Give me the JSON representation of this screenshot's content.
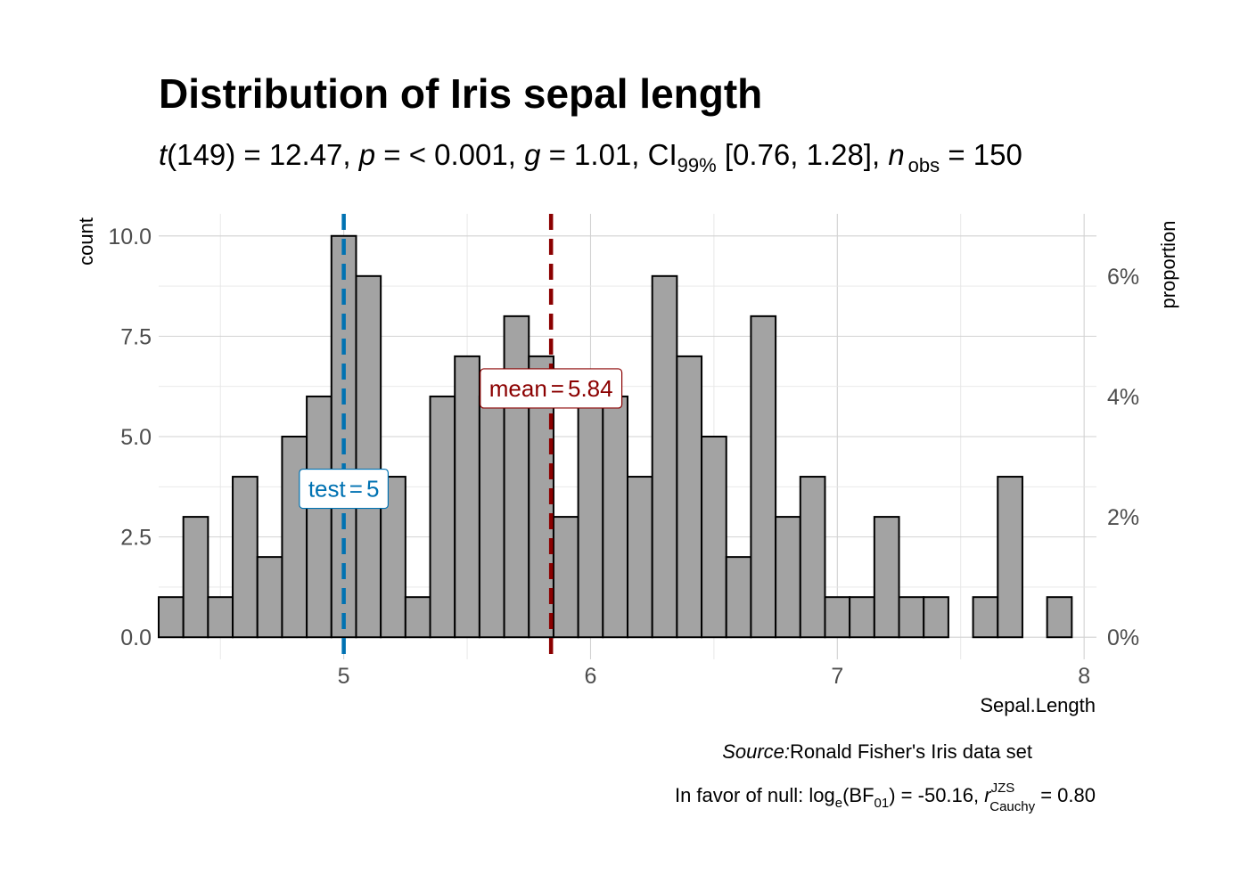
{
  "chart_data": {
    "type": "histogram",
    "title": "Distribution of Iris sepal length",
    "subtitle": {
      "stat_name": "t",
      "df": "(149)",
      "t_value": " = 12.47, ",
      "p_name": "p",
      "p_value": " = < 0.001, ",
      "g_name": "g",
      "g_value": " = 1.01, CI",
      "ci_level": "99%",
      "ci_values": " [0.76, 1.28], ",
      "n_name": "n",
      "n_sub": "obs",
      "n_value": " = 150"
    },
    "xlabel": "Sepal.Length",
    "ylabel_left": "count",
    "ylabel_right": "proportion",
    "xlim": [
      4.25,
      8.05
    ],
    "ylim": [
      -0.55,
      10.55
    ],
    "x_ticks": [
      5,
      6,
      7,
      8
    ],
    "x_tick_labels": [
      "5",
      "6",
      "7",
      "8"
    ],
    "y_ticks": [
      0,
      2.5,
      5,
      7.5,
      10
    ],
    "y_tick_labels": [
      "0.0",
      "2.5",
      "5.0",
      "7.5",
      "10.0"
    ],
    "y_right_ticks": [
      0,
      0.02,
      0.04,
      0.06
    ],
    "y_right_tick_labels": [
      "0%",
      "2%",
      "4%",
      "6%"
    ],
    "total_n": 150,
    "bin_start": 4.2,
    "bin_width": 0.1,
    "counts": [
      1,
      3,
      1,
      4,
      2,
      5,
      6,
      10,
      9,
      4,
      1,
      6,
      7,
      6,
      8,
      7,
      3,
      6,
      6,
      4,
      9,
      7,
      5,
      2,
      8,
      3,
      4,
      1,
      1,
      3,
      1,
      1,
      0,
      1,
      4,
      0,
      1
    ],
    "test_line": {
      "value": 5,
      "color": "#0072B2",
      "label_prefix": "test",
      "label_value": "5"
    },
    "mean_line": {
      "value": 5.84,
      "color": "#8B0000",
      "label_prefix": "mean",
      "label_value": "5.84"
    },
    "caption": {
      "source_label": "Source:",
      "source_text": "Ronald Fisher's Iris data set",
      "bf_prefix": "In favor of null: log",
      "bf_e": "e",
      "bf_mid": "(BF",
      "bf_sub": "01",
      "bf_value": ") = -50.16, ",
      "r_name": "r",
      "r_sup": "JZS",
      "r_sub": "Cauchy",
      "r_value": " = 0.80"
    }
  }
}
